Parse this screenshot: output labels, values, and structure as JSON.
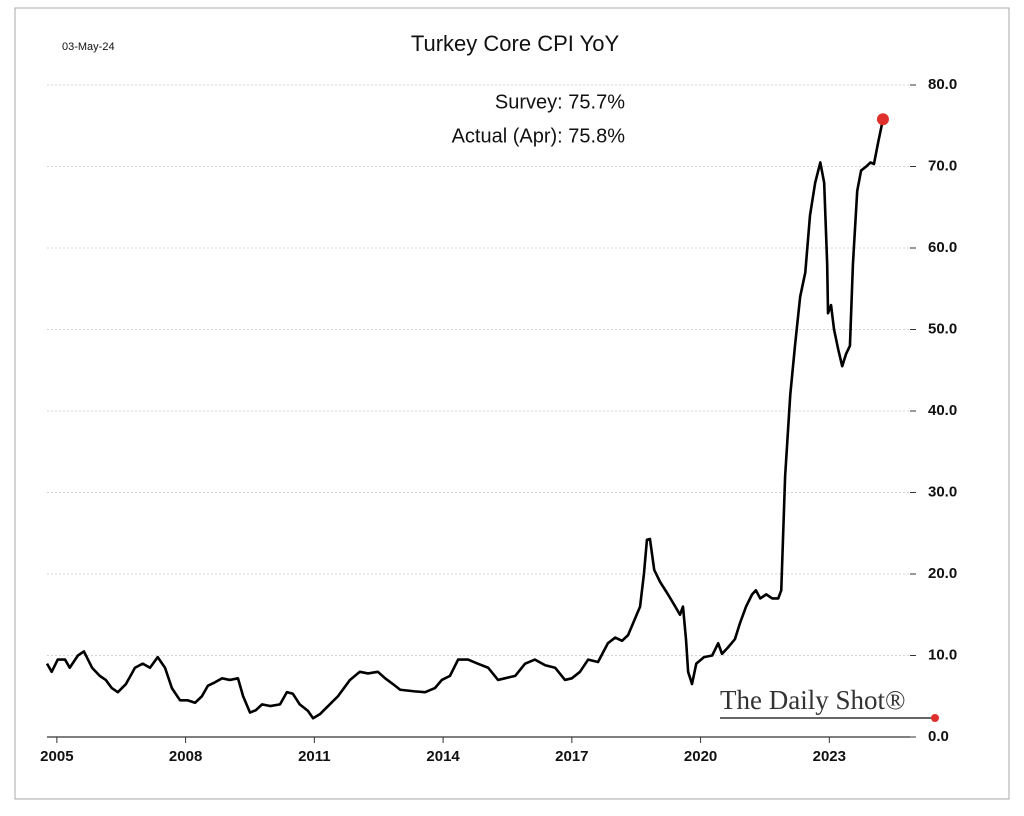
{
  "chart_data": {
    "type": "line",
    "title": "Turkey Core CPI YoY",
    "date": "03-May-24",
    "annotations": [
      "Survey:  75.7%",
      "Actual (Apr):  75.8%"
    ],
    "watermark": "The Daily Shot®",
    "color": "#000000",
    "marker_color": "#e0302c",
    "grid": true,
    "x": [
      2004.77,
      2004.88,
      2005.02,
      2005.19,
      2005.3,
      2005.49,
      2005.63,
      2005.82,
      2006.0,
      2006.14,
      2006.28,
      2006.42,
      2006.61,
      2006.82,
      2007.0,
      2007.17,
      2007.35,
      2007.52,
      2007.68,
      2007.87,
      2008.05,
      2008.22,
      2008.38,
      2008.52,
      2008.68,
      2008.85,
      2009.03,
      2009.22,
      2009.34,
      2009.5,
      2009.64,
      2009.78,
      2009.97,
      2010.2,
      2010.36,
      2010.5,
      2010.66,
      2010.85,
      2010.97,
      2011.13,
      2011.32,
      2011.55,
      2011.83,
      2012.06,
      2012.25,
      2012.48,
      2012.65,
      2012.83,
      2013.0,
      2013.34,
      2013.58,
      2013.81,
      2013.97,
      2014.16,
      2014.35,
      2014.58,
      2014.81,
      2015.05,
      2015.28,
      2015.44,
      2015.68,
      2015.91,
      2016.14,
      2016.38,
      2016.61,
      2016.84,
      2017.0,
      2017.19,
      2017.38,
      2017.61,
      2017.84,
      2018.01,
      2018.17,
      2018.31,
      2018.47,
      2018.59,
      2018.68,
      2018.75,
      2018.82,
      2018.92,
      2019.06,
      2019.24,
      2019.41,
      2019.52,
      2019.59,
      2019.66,
      2019.71,
      2019.8,
      2019.9,
      2020.08,
      2020.27,
      2020.41,
      2020.5,
      2020.64,
      2020.8,
      2020.92,
      2021.06,
      2021.2,
      2021.29,
      2021.39,
      2021.53,
      2021.67,
      2021.81,
      2021.88,
      2021.97,
      2022.09,
      2022.2,
      2022.32,
      2022.44,
      2022.55,
      2022.67,
      2022.79,
      2022.88,
      2022.95,
      2022.97,
      2023.04,
      2023.11,
      2023.21,
      2023.3,
      2023.39,
      2023.48,
      2023.55,
      2023.65,
      2023.74,
      2023.86,
      2023.96,
      2024.04,
      2024.14,
      2024.25
    ],
    "values": [
      9,
      8,
      9.5,
      9.5,
      8.5,
      10,
      10.5,
      8.5,
      7.5,
      7,
      6,
      5.5,
      6.5,
      8.5,
      9,
      8.5,
      9.8,
      8.5,
      6,
      4.5,
      4.5,
      4.2,
      5,
      6.3,
      6.7,
      7.2,
      7,
      7.2,
      5,
      3,
      3.3,
      4,
      3.8,
      4,
      5.5,
      5.3,
      4,
      3.2,
      2.3,
      2.8,
      3.8,
      5,
      7,
      8,
      7.8,
      8,
      7.2,
      6.5,
      5.8,
      5.6,
      5.5,
      6,
      7,
      7.5,
      9.5,
      9.5,
      9,
      8.5,
      7,
      7.2,
      7.5,
      9,
      9.5,
      8.8,
      8.5,
      7,
      7.2,
      8,
      9.5,
      9.2,
      11.5,
      12.2,
      11.8,
      12.5,
      14.5,
      16,
      20,
      24.2,
      24.3,
      20.5,
      19,
      17.5,
      16,
      15,
      16,
      12,
      8,
      6.5,
      9,
      9.8,
      10,
      11.5,
      10.2,
      11,
      12,
      14,
      16,
      17.5,
      18,
      17,
      17.5,
      17,
      17,
      18,
      32,
      42,
      48,
      54,
      57,
      64,
      68,
      70.5,
      68,
      58,
      52,
      53,
      50,
      47.5,
      45.5,
      47,
      48,
      58,
      67,
      69.5,
      70,
      70.5,
      70.3,
      73,
      75.8
    ],
    "xlim": [
      2004.77,
      2024.88
    ],
    "xticks": [
      2005,
      2008,
      2011,
      2014,
      2017,
      2020,
      2023
    ],
    "ylim": [
      0,
      80
    ],
    "yticks": [
      {
        "value": 0,
        "label": "0.0"
      },
      {
        "value": 10,
        "label": "10.0"
      },
      {
        "value": 20,
        "label": "20.0"
      },
      {
        "value": 30,
        "label": "30.0"
      },
      {
        "value": 40,
        "label": "40.0"
      },
      {
        "value": 50,
        "label": "50.0"
      },
      {
        "value": 60,
        "label": "60.0"
      },
      {
        "value": 70,
        "label": "70.0"
      },
      {
        "value": 80,
        "label": "80.0"
      }
    ]
  }
}
